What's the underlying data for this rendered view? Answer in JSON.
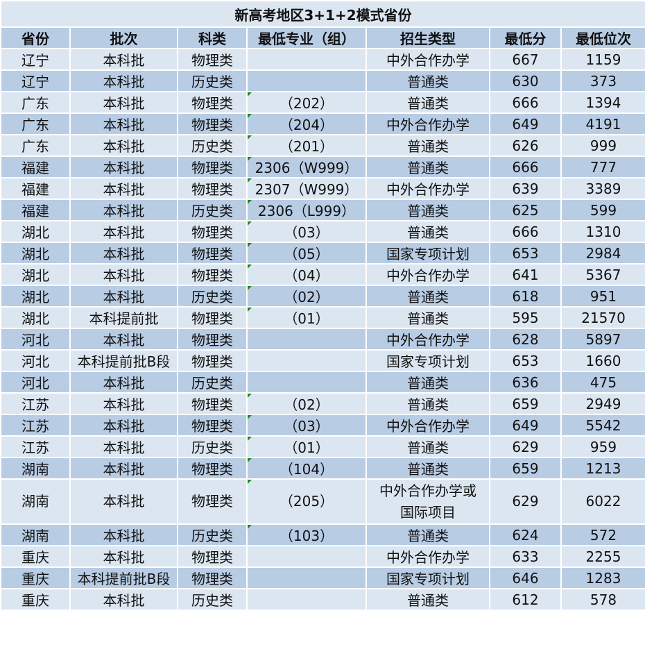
{
  "title": "新高考地区3+1+2模式省份",
  "headers": [
    "省份",
    "批次",
    "科类",
    "最低专业（组）",
    "招生类型",
    "最低分",
    "最低位次"
  ],
  "rows": [
    [
      "辽宁",
      "本科批",
      "物理类",
      "",
      "中外合作办学",
      "667",
      "1159"
    ],
    [
      "辽宁",
      "本科批",
      "历史类",
      "",
      "普通类",
      "630",
      "373"
    ],
    [
      "广东",
      "本科批",
      "物理类",
      "（202）",
      "普通类",
      "666",
      "1394"
    ],
    [
      "广东",
      "本科批",
      "物理类",
      "（204）",
      "中外合作办学",
      "649",
      "4191"
    ],
    [
      "广东",
      "本科批",
      "历史类",
      "（201）",
      "普通类",
      "626",
      "999"
    ],
    [
      "福建",
      "本科批",
      "物理类",
      "2306（W999）",
      "普通类",
      "666",
      "777"
    ],
    [
      "福建",
      "本科批",
      "物理类",
      "2307（W999）",
      "中外合作办学",
      "639",
      "3389"
    ],
    [
      "福建",
      "本科批",
      "历史类",
      "2306（L999）",
      "普通类",
      "625",
      "599"
    ],
    [
      "湖北",
      "本科批",
      "物理类",
      "（03）",
      "普通类",
      "666",
      "1310"
    ],
    [
      "湖北",
      "本科批",
      "物理类",
      "（05）",
      "国家专项计划",
      "653",
      "2984"
    ],
    [
      "湖北",
      "本科批",
      "物理类",
      "（04）",
      "中外合作办学",
      "641",
      "5367"
    ],
    [
      "湖北",
      "本科批",
      "历史类",
      "（02）",
      "普通类",
      "618",
      "951"
    ],
    [
      "湖北",
      "本科提前批",
      "物理类",
      "（01）",
      "普通类",
      "595",
      "21570"
    ],
    [
      "河北",
      "本科批",
      "物理类",
      "",
      "中外合作办学",
      "628",
      "5897"
    ],
    [
      "河北",
      "本科提前批B段",
      "物理类",
      "",
      "国家专项计划",
      "653",
      "1660"
    ],
    [
      "河北",
      "本科批",
      "历史类",
      "",
      "普通类",
      "636",
      "475"
    ],
    [
      "江苏",
      "本科批",
      "物理类",
      "（02）",
      "普通类",
      "659",
      "2949"
    ],
    [
      "江苏",
      "本科批",
      "物理类",
      "（03）",
      "中外合作办学",
      "649",
      "5542"
    ],
    [
      "江苏",
      "本科批",
      "历史类",
      "（01）",
      "普通类",
      "629",
      "959"
    ],
    [
      "湖南",
      "本科批",
      "物理类",
      "（104）",
      "普通类",
      "659",
      "1213"
    ],
    [
      "湖南",
      "本科批",
      "物理类",
      "（205）",
      "中外合作办学或\n国际项目",
      "629",
      "6022"
    ],
    [
      "湖南",
      "本科批",
      "历史类",
      "（103）",
      "普通类",
      "624",
      "572"
    ],
    [
      "重庆",
      "本科批",
      "物理类",
      "",
      "中外合作办学",
      "633",
      "2255"
    ],
    [
      "重庆",
      "本科提前批B段",
      "物理类",
      "",
      "国家专项计划",
      "646",
      "1283"
    ],
    [
      "重庆",
      "本科批",
      "历史类",
      "",
      "普通类",
      "612",
      "578"
    ]
  ]
}
